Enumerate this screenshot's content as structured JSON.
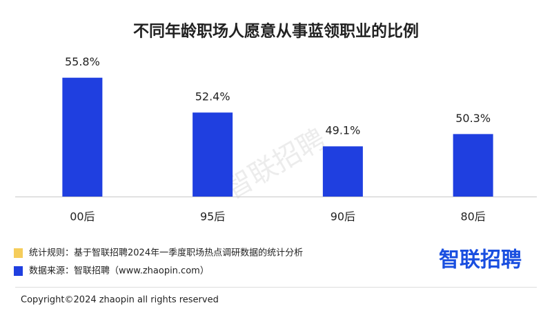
{
  "chart_data": {
    "type": "bar",
    "title": "不同年龄职场人愿意从事蓝领职业的比例",
    "categories": [
      "00后",
      "95后",
      "90后",
      "80后"
    ],
    "values": [
      55.8,
      52.4,
      49.1,
      50.3
    ],
    "value_labels": [
      "55.8%",
      "52.4%",
      "49.1%",
      "50.3%"
    ],
    "color": "#1f3fe0",
    "ylim": [
      44.2,
      58
    ]
  },
  "watermark": "智联招聘",
  "notes": [
    {
      "text": "统计规则：基于智联招聘2024年一季度职场热点调研数据的统计分析",
      "color": "#f5cd5b"
    },
    {
      "text": "数据来源：智联招聘（www.zhaopin.com）",
      "color": "#1f3fe0"
    }
  ],
  "logo": "智联招聘",
  "copyright": "Copyright©2024 zhaopin all rights reserved"
}
